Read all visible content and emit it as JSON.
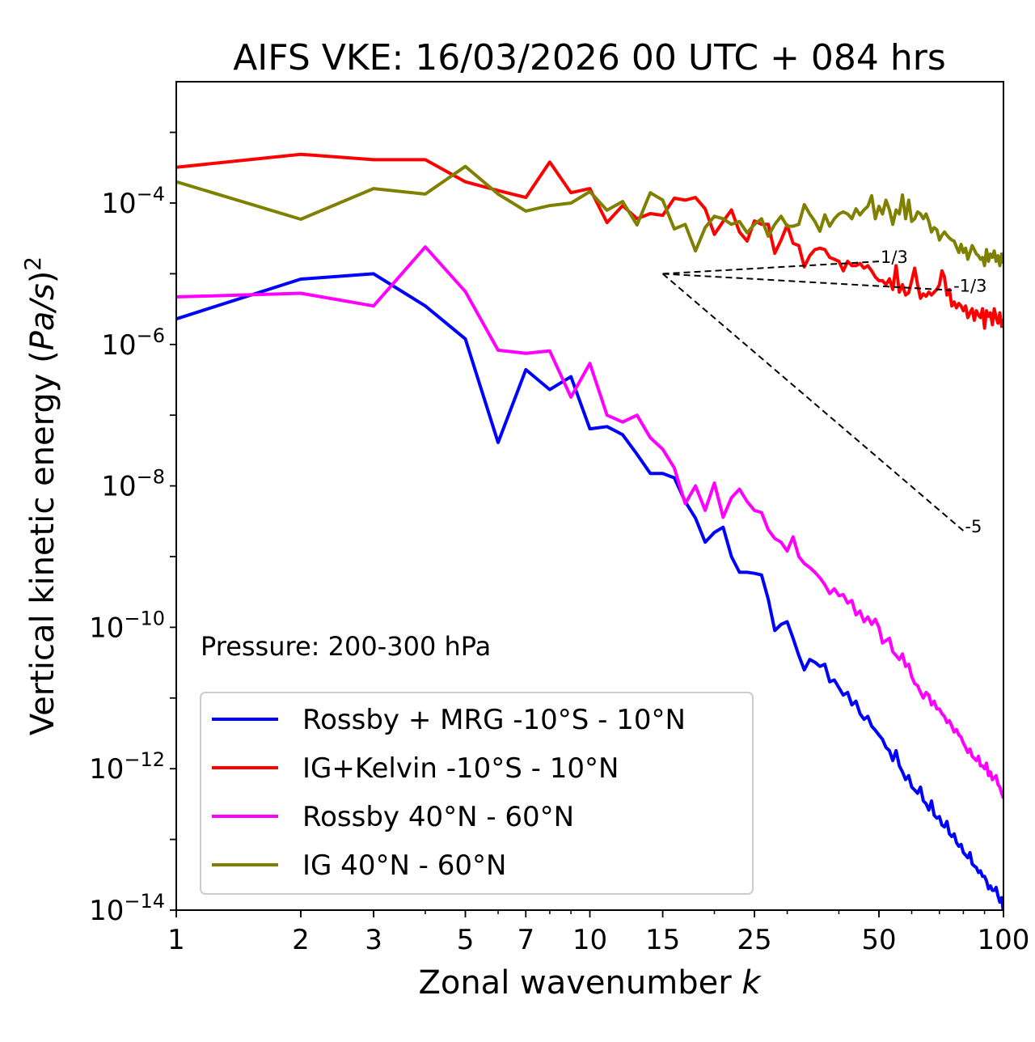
{
  "chart_data": {
    "type": "line",
    "title": "AIFS VKE: 16/03/2026 00 UTC + 084 hrs",
    "xlabel": {
      "text": "Zonal wavenumber ",
      "italic": "k"
    },
    "ylabel": {
      "prefix": "Vertical kinetic energy (",
      "italic": "Pa/s",
      "suffix": ")",
      "sup": "2"
    },
    "xscale": "log",
    "yscale": "log",
    "xlim": [
      1,
      100
    ],
    "ylim": [
      1e-14,
      0.0052
    ],
    "xticks": [
      {
        "value": 1,
        "label": "1"
      },
      {
        "value": 2,
        "label": "2"
      },
      {
        "value": 3,
        "label": "3"
      },
      {
        "value": 5,
        "label": "5"
      },
      {
        "value": 7,
        "label": "7"
      },
      {
        "value": 10,
        "label": "10"
      },
      {
        "value": 15,
        "label": "15"
      },
      {
        "value": 25,
        "label": "25"
      },
      {
        "value": 50,
        "label": "50"
      },
      {
        "value": 100,
        "label": "100"
      }
    ],
    "yticks": [
      {
        "exp": -4,
        "base": "10",
        "sup": "−4"
      },
      {
        "exp": -6,
        "base": "10",
        "sup": "−6"
      },
      {
        "exp": -8,
        "base": "10",
        "sup": "−8"
      },
      {
        "exp": -10,
        "base": "10",
        "sup": "−10"
      },
      {
        "exp": -12,
        "base": "10",
        "sup": "−12"
      },
      {
        "exp": -14,
        "base": "10",
        "sup": "−14"
      }
    ],
    "grid": false,
    "annotation": "Pressure: 200-300 hPa",
    "legend_position": "lower-left",
    "reference_lines": [
      {
        "slope": 0.3333,
        "label": "1/3",
        "from_k": 15,
        "to_k": 50,
        "from_value": 1e-05
      },
      {
        "slope": -0.3333,
        "label": "-1/3",
        "from_k": 15,
        "to_k": 75,
        "from_value": 1e-05
      },
      {
        "slope": -5,
        "label": "-5",
        "from_k": 15,
        "to_k": 80,
        "from_value": 1e-05
      }
    ],
    "x_start": 1,
    "series": [
      {
        "name": "Rossby + MRG -10°S - 10°N",
        "color": "#0000ff",
        "values": [
          2.3e-06,
          8.4e-06,
          1e-05,
          3.5e-06,
          1.2e-06,
          4.1e-08,
          4.4e-07,
          2.3e-07,
          3.5e-07,
          6.4e-08,
          6.9e-08,
          5.3e-08,
          2.8e-08,
          1.5e-08,
          1.5e-08,
          1.3e-08,
          6e-09,
          3.5e-09,
          1.6e-09,
          2.2e-09,
          2.6e-09,
          1e-09,
          6e-10,
          6e-10,
          5.8e-10,
          5.5e-10,
          2.5e-10,
          9e-11,
          1.1e-10,
          1.2e-10,
          7e-11,
          4e-11,
          2.5e-11,
          3.5e-11,
          3.2e-11,
          2.8e-11,
          3e-11,
          1.7e-11,
          1.8e-11,
          1.4e-11,
          1.1e-11,
          1.2e-11,
          8e-12,
          9e-12,
          6e-12,
          5e-12,
          5.5e-12,
          4e-12,
          3.5e-12,
          3e-12,
          2.6e-12,
          2e-12,
          1.8e-12,
          1.3e-12,
          1.8e-12,
          1.1e-12,
          9e-13,
          7e-13,
          8e-13,
          5.5e-13,
          5e-13,
          4.5e-13,
          5.5e-13,
          3.5e-13,
          3.2e-13,
          2.6e-13,
          3.5e-13,
          2.2e-13,
          2e-13,
          2.1e-13,
          1.6e-13,
          1.5e-13,
          1.8e-13,
          1.2e-13,
          1.1e-13,
          1.2e-13,
          9e-14,
          8e-14,
          8.5e-14,
          6.5e-14,
          6e-14,
          5.5e-14,
          6.5e-14,
          4.5e-14,
          4.2e-14,
          4e-14,
          3.4e-14,
          3.6e-14,
          3e-14,
          3e-14,
          2.6e-14,
          2e-14,
          2.2e-14,
          1.9e-14,
          1.9e-14,
          2.1e-14,
          1.6e-14,
          1.3e-14,
          1.5e-14,
          9e-15
        ]
      },
      {
        "name": "IG+Kelvin -10°S - 10°N",
        "color": "#ff0000",
        "values": [
          0.00032,
          0.00049,
          0.00041,
          0.00041,
          0.0002,
          0.00015,
          0.00012,
          0.00038,
          0.00014,
          0.00016,
          5.3e-05,
          9.2e-05,
          6e-05,
          7.1e-05,
          6.7e-05,
          0.000117,
          0.00011,
          0.00012,
          8.3e-05,
          3.6e-05,
          5.5e-05,
          8e-05,
          3.9e-05,
          2.9e-05,
          5.6e-05,
          5e-05,
          5e-05,
          1.95e-05,
          3e-05,
          4.9e-05,
          2.7e-05,
          2.5e-05,
          1.25e-05,
          1.8e-05,
          2.2e-05,
          2.3e-05,
          2.2e-05,
          1.7e-05,
          1.6e-05,
          1.5e-05,
          1.1e-05,
          1.5e-05,
          1.3e-05,
          1.3e-05,
          1.4e-05,
          1.2e-05,
          1.3e-05,
          1.1e-05,
          9e-06,
          8e-06,
          8e-06,
          7e-06,
          8.5e-06,
          6e-06,
          1.3e-05,
          5.5e-06,
          7e-06,
          5e-06,
          5.4e-06,
          8e-06,
          1.2e-05,
          7e-06,
          4.5e-06,
          5.2e-06,
          4.8e-06,
          5.5e-06,
          5e-06,
          5.5e-06,
          6e-06,
          7e-06,
          1.1e-05,
          9e-06,
          5e-06,
          6e-06,
          3.5e-06,
          4e-06,
          3.3e-06,
          3.8e-06,
          3.5e-06,
          3e-06,
          3.5e-06,
          2.4e-06,
          2.8e-06,
          3.2e-06,
          2.2e-06,
          3e-06,
          2.6e-06,
          2.4e-06,
          3.2e-06,
          1.7e-06,
          3e-06,
          2.5e-06,
          2.8e-06,
          1.9e-06,
          3.2e-06,
          2.4e-06,
          2e-06,
          2.8e-06,
          1.8e-06,
          2.3e-06
        ]
      },
      {
        "name": "Rossby 40°N - 60°N",
        "color": "#ff00ff",
        "values": [
          4.7e-06,
          5.3e-06,
          3.5e-06,
          2.4e-05,
          5.6e-06,
          8.3e-07,
          7.5e-07,
          8.1e-07,
          1.8e-07,
          5.4e-07,
          1e-07,
          8e-08,
          1e-07,
          4.8e-08,
          3.3e-08,
          1.8e-08,
          5.6e-09,
          1e-08,
          4.5e-09,
          1.1e-08,
          3.6e-09,
          6.8e-09,
          9e-09,
          6e-09,
          4.5e-09,
          4.2e-09,
          2.4e-09,
          1.8e-09,
          1.6e-09,
          1.2e-09,
          1.9e-09,
          1e-09,
          8e-10,
          7e-10,
          6e-10,
          5e-10,
          4e-10,
          3e-10,
          3.5e-10,
          2.8e-10,
          2.9e-10,
          2.2e-10,
          2.4e-10,
          1.5e-10,
          1.7e-10,
          1.2e-10,
          1.4e-10,
          1.1e-10,
          1.3e-10,
          1e-10,
          6e-11,
          6.5e-11,
          7e-11,
          4.5e-11,
          4e-11,
          3.5e-11,
          4.2e-11,
          2.8e-11,
          3e-11,
          2e-11,
          1.6e-11,
          1.5e-11,
          1.2e-11,
          1e-11,
          1.2e-11,
          1.1e-11,
          8e-12,
          9e-12,
          7e-12,
          7e-12,
          6e-12,
          5.5e-12,
          4.5e-12,
          4.8e-12,
          4e-12,
          3.3e-12,
          3.6e-12,
          3e-12,
          2.8e-12,
          2.3e-12,
          2e-12,
          1.7e-12,
          1.9e-12,
          1.5e-12,
          1.4e-12,
          1.3e-12,
          1.5e-12,
          1.1e-12,
          1.1e-12,
          1e-12,
          1.2e-12,
          8e-13,
          9e-13,
          7e-13,
          7.5e-13,
          8e-13,
          6e-13,
          5.5e-13,
          4.5e-13,
          3.8e-13
        ]
      },
      {
        "name": "IG 40°N - 60°N",
        "color": "#808000",
        "values": [
          0.0002,
          5.9e-05,
          0.00016,
          0.000134,
          0.00033,
          0.000134,
          7.7e-05,
          9.2e-05,
          0.0001,
          0.000145,
          7.9e-05,
          0.000105,
          4.9e-05,
          0.00014,
          0.00011,
          4.3e-05,
          5e-05,
          2.1e-05,
          4.5e-05,
          6.5e-05,
          6e-05,
          5e-05,
          5.5e-05,
          3.8e-05,
          5e-05,
          6e-05,
          3.4e-05,
          5e-05,
          6.5e-05,
          4.7e-05,
          4.7e-05,
          5e-05,
          9.5e-05,
          7e-05,
          5.5e-05,
          4e-05,
          6.8e-05,
          4.7e-05,
          6e-05,
          7e-05,
          7.5e-05,
          7e-05,
          6e-05,
          8.3e-05,
          6.8e-05,
          8e-05,
          9e-05,
          0.000127,
          6e-05,
          9e-05,
          7e-05,
          0.00011,
          8e-05,
          5e-05,
          8e-05,
          7e-05,
          0.00013,
          6e-05,
          0.00011,
          5.5e-05,
          6e-05,
          7.5e-05,
          7e-05,
          6e-05,
          7e-05,
          5.5e-05,
          3.9e-05,
          4.5e-05,
          4.2e-05,
          3e-05,
          3.5e-05,
          3.9e-05,
          3.5e-05,
          3.2e-05,
          3e-05,
          2.9e-05,
          2.4e-05,
          2e-05,
          2.6e-05,
          2e-05,
          2.3e-05,
          1.6e-05,
          2e-05,
          2.5e-05,
          2.2e-05,
          1.9e-05,
          1.8e-05,
          1.6e-05,
          1.7e-05,
          1.3e-05,
          2.2e-05,
          1.5e-05,
          1.9e-05,
          1.7e-05,
          2.1e-05,
          1.5e-05,
          1.8e-05,
          1.3e-05,
          1.9e-05,
          1.4e-05
        ]
      }
    ]
  }
}
